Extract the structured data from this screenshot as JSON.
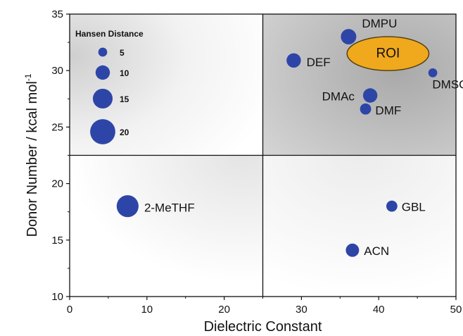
{
  "chart_data": {
    "type": "scatter",
    "xlabel": "Dielectric Constant",
    "ylabel": "Donor Number / kcal mol",
    "ylabel_sup": "-1",
    "xlim": [
      0,
      50
    ],
    "ylim": [
      10,
      35
    ],
    "xticks": [
      0,
      10,
      20,
      30,
      40,
      50
    ],
    "yticks": [
      10,
      15,
      20,
      25,
      30,
      35
    ],
    "divider_x": 25,
    "divider_y": 22.5,
    "grid": false,
    "colors": {
      "point": "#2e45a8",
      "roi_fill": "#f0a81c",
      "roi_stroke": "#4a3a10",
      "quadrant_shade": "#b8b8b8"
    },
    "points": [
      {
        "label": "DMPU",
        "x": 36.1,
        "y": 33.0,
        "size": 11
      },
      {
        "label": "DEF",
        "x": 29.0,
        "y": 30.9,
        "size": 10
      },
      {
        "label": "DMSO",
        "x": 47.0,
        "y": 29.8,
        "size": 5
      },
      {
        "label": "DMAc",
        "x": 38.9,
        "y": 27.8,
        "size": 10
      },
      {
        "label": "DMF",
        "x": 38.3,
        "y": 26.6,
        "size": 7
      },
      {
        "label": "2-MeTHF",
        "x": 7.5,
        "y": 18.0,
        "size": 17
      },
      {
        "label": "GBL",
        "x": 41.7,
        "y": 18.0,
        "size": 7
      },
      {
        "label": "ACN",
        "x": 36.6,
        "y": 14.1,
        "size": 9
      }
    ],
    "roi": {
      "label": "ROI",
      "cx": 41.2,
      "cy": 31.5,
      "rx": 5.3,
      "ry": 1.5
    },
    "legend": {
      "title": "Hansen Distance",
      "placement": "top-left",
      "entries": [
        {
          "label": "5",
          "size": 5
        },
        {
          "label": "10",
          "size": 10
        },
        {
          "label": "15",
          "size": 15
        },
        {
          "label": "20",
          "size": 20
        }
      ]
    }
  }
}
